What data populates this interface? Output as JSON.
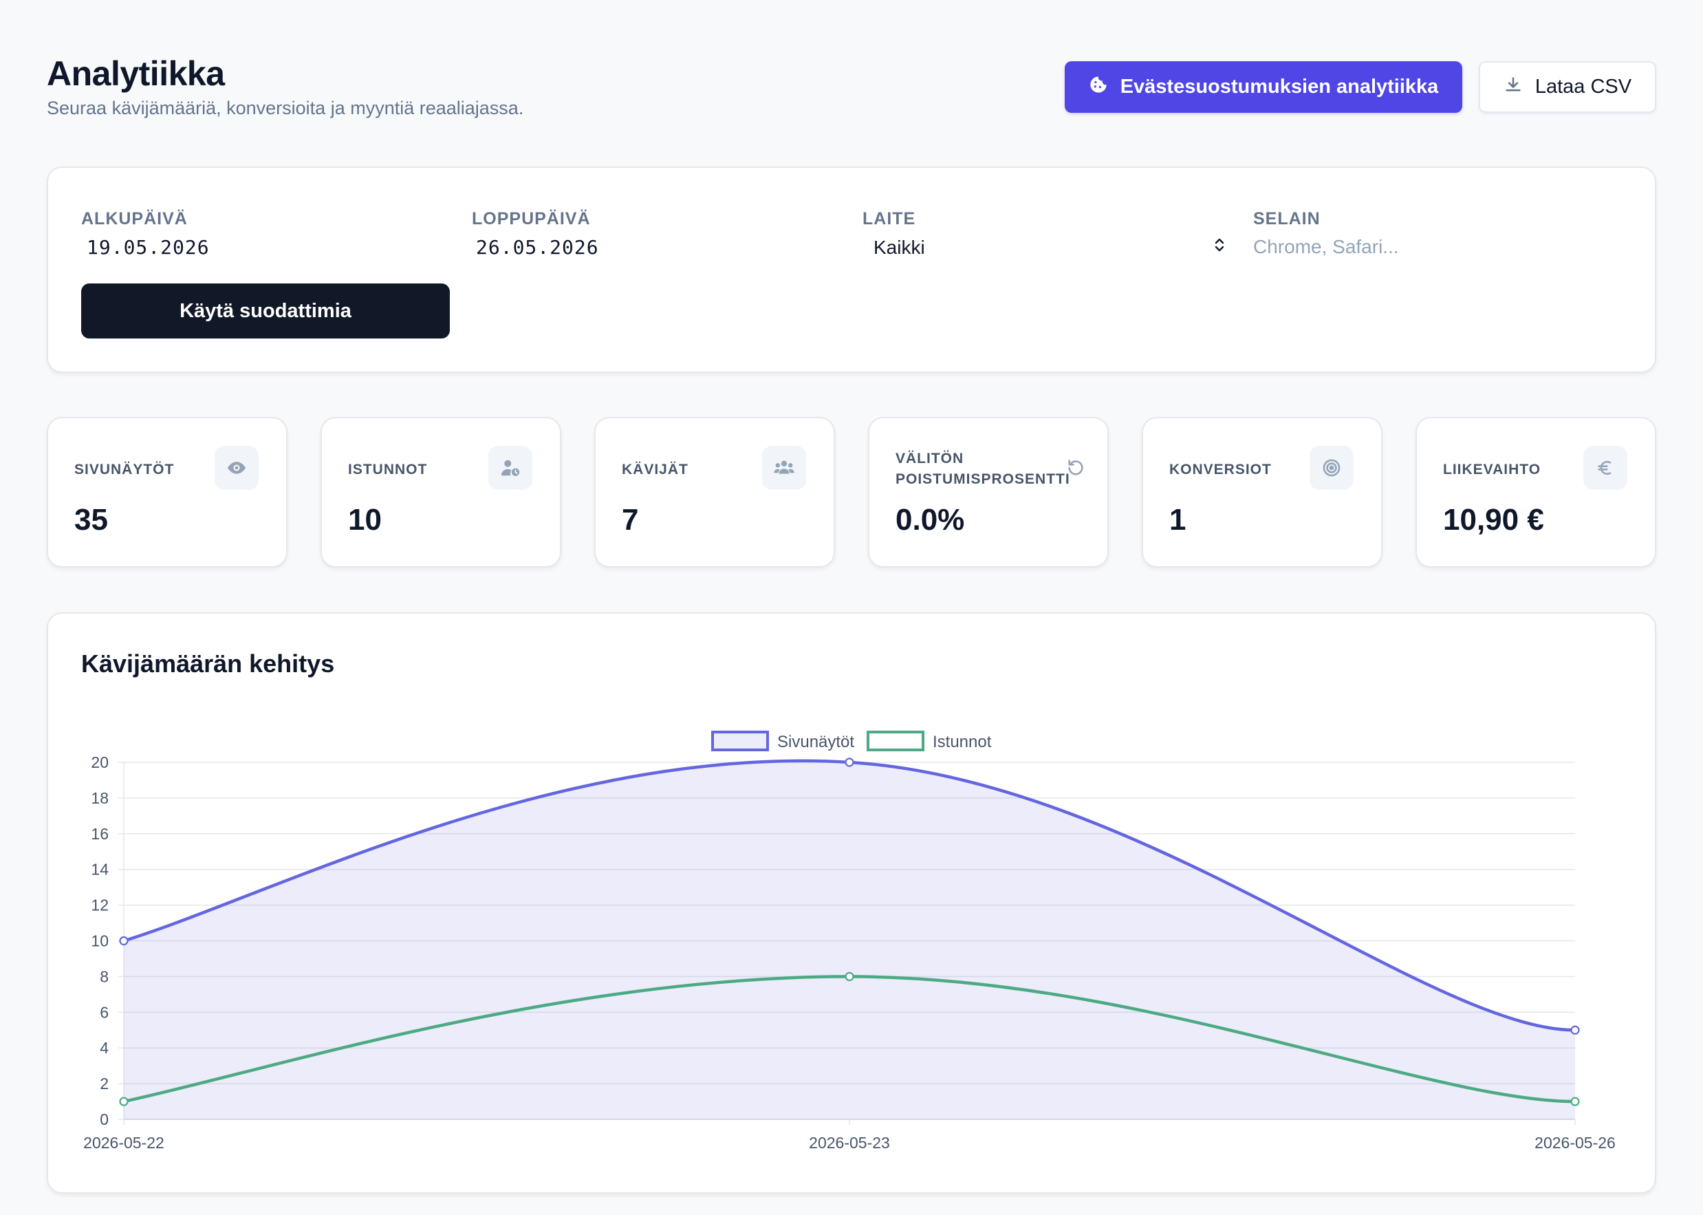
{
  "header": {
    "title": "Analytiikka",
    "subtitle": "Seuraa kävijämääriä, konversioita ja myyntiä reaaliajassa.",
    "cookie_button": "Evästesuostumuksien analytiikka",
    "csv_button": "Lataa CSV"
  },
  "filters": {
    "start_label": "ALKUPÄIVÄ",
    "start_value": "19.05.2026",
    "end_label": "LOPPUPÄIVÄ",
    "end_value": "26.05.2026",
    "device_label": "LAITE",
    "device_value": "Kaikki",
    "browser_label": "SELAIN",
    "browser_placeholder": "Chrome, Safari...",
    "apply_button": "Käytä suodattimia"
  },
  "stats": [
    {
      "label": "SIVUNÄYTÖT",
      "value": "35",
      "icon": "eye-icon"
    },
    {
      "label": "ISTUNNOT",
      "value": "10",
      "icon": "user-clock-icon"
    },
    {
      "label": "KÄVIJÄT",
      "value": "7",
      "icon": "users-icon"
    },
    {
      "label": "VÄLITÖN POISTUMISPROSENTTI",
      "value": "0.0%",
      "icon": "rotate-left-icon"
    },
    {
      "label": "KONVERSIOT",
      "value": "1",
      "icon": "target-icon"
    },
    {
      "label": "LIIKEVAIHTO",
      "value": "10,90 €",
      "icon": "euro-icon"
    }
  ],
  "chart": {
    "title": "Kävijämäärän kehitys"
  },
  "colors": {
    "primary": "#4f46e5",
    "series_views": "#6366e0",
    "series_sessions": "#4caa82",
    "dark_button": "#111827"
  },
  "chart_data": {
    "type": "line",
    "title": "Kävijämäärän kehitys",
    "x": [
      "2026-05-22",
      "2026-05-23",
      "2026-05-26"
    ],
    "series": [
      {
        "name": "Sivunäytöt",
        "values": [
          10,
          20,
          5
        ],
        "color": "#6366e0",
        "fill": true
      },
      {
        "name": "Istunnot",
        "values": [
          1,
          8,
          1
        ],
        "color": "#4caa82",
        "fill": false
      }
    ],
    "ylim": [
      0,
      20
    ],
    "yticks": [
      0,
      2,
      4,
      6,
      8,
      10,
      12,
      14,
      16,
      18,
      20
    ],
    "grid": true,
    "legend": "top-center"
  }
}
